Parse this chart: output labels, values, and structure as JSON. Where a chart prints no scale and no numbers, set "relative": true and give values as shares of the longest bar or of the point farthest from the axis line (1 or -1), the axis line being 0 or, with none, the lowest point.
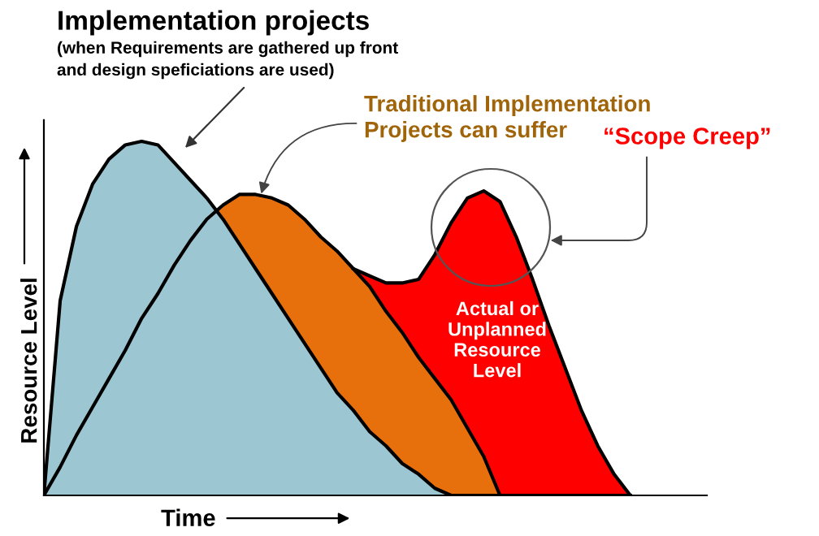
{
  "chart_data": {
    "type": "area",
    "relative": true,
    "title": "Implementation projects",
    "subtitle": "(when Requirements are gathered up front\nand design speficiations are used)",
    "xlabel": "Time",
    "ylabel": "Resource Level",
    "categories": [
      null,
      null,
      null,
      null,
      null,
      null,
      null,
      null,
      null,
      null,
      null,
      null,
      null,
      null,
      null,
      null,
      null,
      null,
      null,
      null,
      null,
      null,
      null,
      null,
      null,
      null,
      null,
      null,
      null,
      null,
      null,
      null,
      null,
      null,
      null,
      null,
      null
    ],
    "series": [
      {
        "color": "#ff0000",
        "values": [
          null,
          null,
          null,
          null,
          null,
          null,
          null,
          null,
          null,
          null,
          null,
          null,
          null,
          null,
          null,
          null,
          null,
          null,
          null,
          0.64,
          0.62,
          0.6,
          0.6,
          0.61,
          0.68,
          0.77,
          0.84,
          0.86,
          0.83,
          0.73,
          0.61,
          0.48,
          0.36,
          0.24,
          0.14,
          0.06,
          0
        ]
      },
      {
        "color": "#e8700c",
        "values": [
          0,
          0.08,
          0.17,
          0.25,
          0.33,
          0.41,
          0.5,
          0.57,
          0.65,
          0.72,
          0.78,
          0.82,
          0.85,
          0.85,
          0.84,
          0.82,
          0.78,
          0.73,
          0.69,
          0.64,
          0.59,
          0.52,
          0.46,
          0.39,
          0.33,
          0.27,
          0.19,
          0.11,
          0,
          0,
          0,
          0,
          0,
          0,
          0,
          0,
          0
        ]
      },
      {
        "color": "#9cc6d2",
        "values": [
          0,
          0.55,
          0.76,
          0.88,
          0.95,
          0.99,
          1,
          0.99,
          0.94,
          0.89,
          0.84,
          0.78,
          0.71,
          0.64,
          0.57,
          0.5,
          0.43,
          0.36,
          0.29,
          0.24,
          0.18,
          0.14,
          0.09,
          0.06,
          0.02,
          0,
          0,
          0,
          0,
          0,
          0,
          0,
          0,
          0,
          0,
          0,
          0
        ]
      }
    ],
    "annotations": [
      "Traditional Implementation\nProjects can suffer",
      "“Scope Creep”",
      "Actual or\nUnplanned\nResource\nLevel"
    ],
    "legend": false
  }
}
